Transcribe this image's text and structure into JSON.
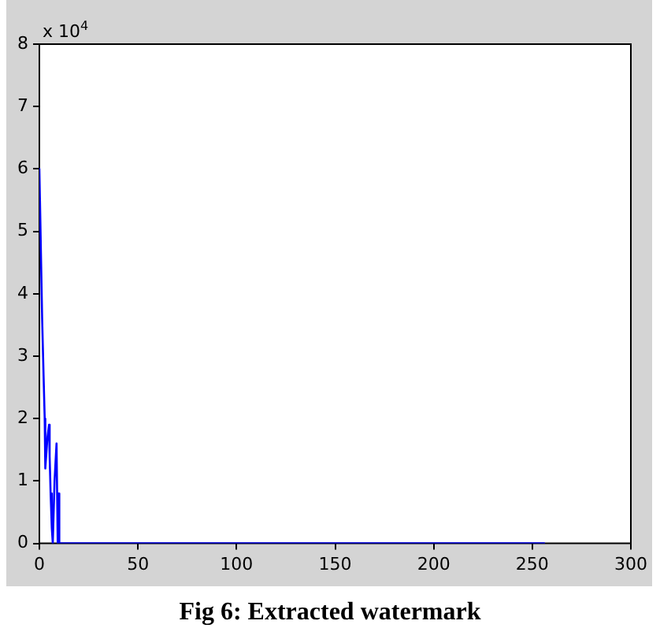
{
  "chart_data": {
    "type": "line",
    "title": "Fig 6: Extracted watermark",
    "annotations": [
      "x 10$^{4}$"
    ],
    "x": [
      0,
      1.4,
      2.2,
      2.7,
      3.0,
      4.1,
      4.9,
      5.2,
      5.7,
      6.3,
      6.8,
      7.7,
      8.7,
      9.3,
      9.8,
      10.1,
      256
    ],
    "series": [
      {
        "color": "#0000ff",
        "values": [
          6.0,
          3.6,
          2.6,
          2.0,
          1.2,
          1.7,
          1.9,
          1.4,
          0.8,
          0.25,
          0,
          1.0,
          1.6,
          0,
          0.8,
          0,
          0
        ]
      }
    ],
    "xlim": [
      0,
      300
    ],
    "xticks": [
      0,
      50,
      100,
      150,
      200,
      250,
      300
    ],
    "ylim": [
      0,
      8
    ],
    "yticks": [
      0,
      1,
      2,
      3,
      4,
      5,
      6,
      7,
      8
    ],
    "grid": false,
    "legend": false,
    "marker": "none",
    "line_style": "solid"
  }
}
